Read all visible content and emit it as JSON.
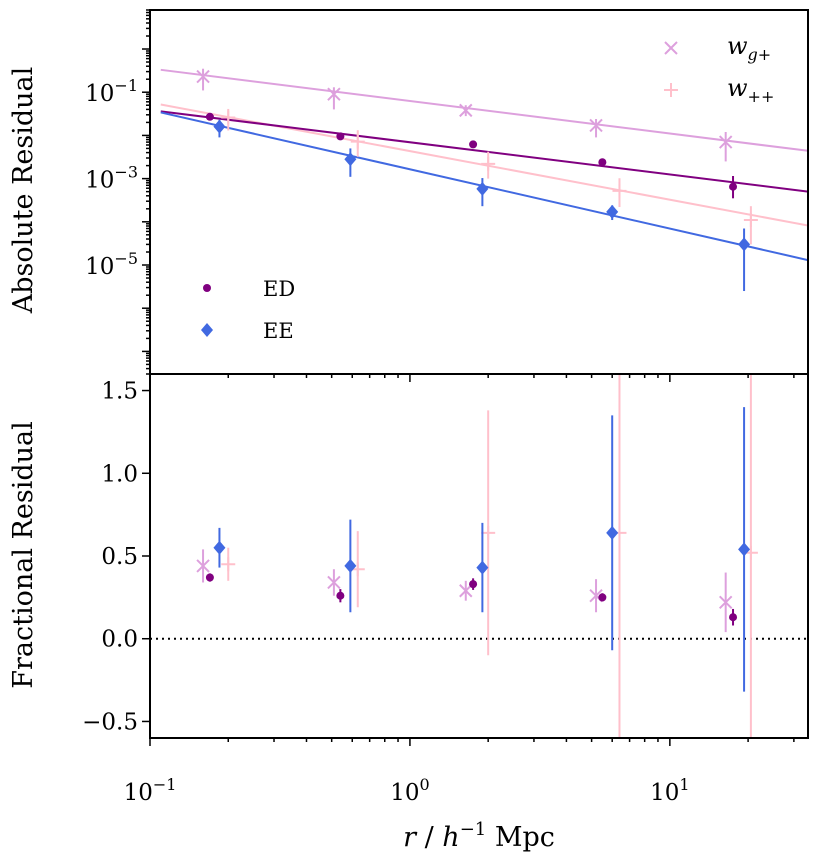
{
  "chart_data": [
    {
      "type": "scatter",
      "panel": "top",
      "title": "",
      "ylabel": "Absolute Residual",
      "xscale": "log",
      "yscale": "log",
      "xlim": [
        0.1,
        34
      ],
      "ylim": [
        3e-08,
        8
      ],
      "y_ticks": [
        {
          "value": 0.1,
          "label": "10^{-1}"
        },
        {
          "value": 0.001,
          "label": "10^{-3}"
        },
        {
          "value": 1e-05,
          "label": "10^{-5}"
        }
      ],
      "legend_left_position": "bottom-left",
      "legend_right_position": "top-right",
      "series": [
        {
          "name": "w_{g+}",
          "label_base": "w",
          "label_sub": "g+",
          "marker": "x",
          "color": "#DDA0DD",
          "legend": "right",
          "x": [
            0.16,
            0.51,
            1.64,
            5.2,
            16.4
          ],
          "y": [
            0.23,
            0.09,
            0.038,
            0.017,
            0.007
          ],
          "yerr_lo": [
            0.12,
            0.05,
            0.01,
            0.008,
            0.0045
          ],
          "yerr_hi": [
            0.12,
            0.04,
            0.012,
            0.007,
            0.005
          ],
          "fit": {
            "x0": 0.11,
            "y0": 0.33,
            "x1": 34,
            "y1": 0.0044
          }
        },
        {
          "name": "w_{++}",
          "label_base": "w",
          "label_sub": "++",
          "marker": "+",
          "color": "#FFC0CB",
          "legend": "right",
          "x": [
            0.2,
            0.63,
            2.0,
            6.4,
            20.5
          ],
          "y": [
            0.026,
            0.0072,
            0.0022,
            0.00052,
            0.00011
          ],
          "yerr_lo": [
            0.013,
            0.004,
            0.0012,
            0.0003,
            8e-05
          ],
          "yerr_hi": [
            0.015,
            0.006,
            0.002,
            0.0005,
            0.00012
          ],
          "fit": {
            "x0": 0.11,
            "y0": 0.052,
            "x1": 34,
            "y1": 8.2e-05
          }
        },
        {
          "name": "ED",
          "marker": "o",
          "color": "#800080",
          "legend": "left",
          "x": [
            0.17,
            0.54,
            1.75,
            5.5,
            17.5
          ],
          "y": [
            0.027,
            0.0095,
            0.0062,
            0.0024,
            0.00065
          ],
          "yerr_lo": [
            0.003,
            0.001,
            0.0008,
            0.0003,
            0.0003
          ],
          "yerr_hi": [
            0.003,
            0.001,
            0.0008,
            0.0003,
            0.0005
          ],
          "fit": {
            "x0": 0.11,
            "y0": 0.036,
            "x1": 34,
            "y1": 0.0005
          }
        },
        {
          "name": "EE",
          "marker": "D",
          "color": "#4169E1",
          "legend": "left",
          "x": [
            0.185,
            0.59,
            1.9,
            6.0,
            19.3
          ],
          "y": [
            0.016,
            0.0028,
            0.00058,
            0.00017,
            3e-05
          ],
          "yerr_lo": [
            0.007,
            0.0017,
            0.00035,
            6e-05,
            2.75e-05
          ],
          "yerr_hi": [
            0.007,
            0.0022,
            0.00045,
            7e-05,
            4e-05
          ],
          "fit": {
            "x0": 0.11,
            "y0": 0.034,
            "x1": 34,
            "y1": 1.3e-05
          }
        }
      ]
    },
    {
      "type": "scatter",
      "panel": "bottom",
      "title": "",
      "xlabel": "r / h^{-1} Mpc",
      "ylabel": "Fractional Residual",
      "xscale": "log",
      "yscale": "linear",
      "xlim": [
        0.1,
        34
      ],
      "ylim": [
        -0.6,
        1.6
      ],
      "y_ticks": [
        {
          "value": 1.5,
          "label": "1.5"
        },
        {
          "value": 1.0,
          "label": "1.0"
        },
        {
          "value": 0.5,
          "label": "0.5"
        },
        {
          "value": 0.0,
          "label": "0.0"
        },
        {
          "value": -0.5,
          "label": "−0.5"
        }
      ],
      "x_ticks": [
        {
          "value": 0.1,
          "label": "10^{-1}"
        },
        {
          "value": 1,
          "label": "10^{0}"
        },
        {
          "value": 10,
          "label": "10^{1}"
        }
      ],
      "reference_line": {
        "y": 0.0,
        "style": "dotted"
      },
      "series": [
        {
          "name": "w_{g+}",
          "marker": "x",
          "color": "#DDA0DD",
          "x": [
            0.16,
            0.51,
            1.64,
            5.2,
            16.4
          ],
          "y": [
            0.44,
            0.34,
            0.29,
            0.26,
            0.22
          ],
          "yerr_lo": [
            0.1,
            0.08,
            0.06,
            0.1,
            0.18
          ],
          "yerr_hi": [
            0.1,
            0.08,
            0.06,
            0.1,
            0.18
          ]
        },
        {
          "name": "w_{++}",
          "marker": "+",
          "color": "#FFC0CB",
          "x": [
            0.2,
            0.63,
            2.0,
            6.4,
            20.5
          ],
          "y": [
            0.45,
            0.42,
            0.64,
            0.64,
            0.52
          ],
          "yerr_lo": [
            0.1,
            0.23,
            0.74,
            1.3,
            1.15
          ],
          "yerr_hi": [
            0.1,
            0.23,
            0.74,
            1.3,
            1.15
          ]
        },
        {
          "name": "ED",
          "marker": "o",
          "color": "#800080",
          "x": [
            0.17,
            0.54,
            1.75,
            5.5,
            17.5
          ],
          "y": [
            0.37,
            0.26,
            0.33,
            0.25,
            0.13
          ],
          "yerr_lo": [
            0.025,
            0.04,
            0.035,
            0.025,
            0.05
          ],
          "yerr_hi": [
            0.025,
            0.04,
            0.035,
            0.025,
            0.05
          ]
        },
        {
          "name": "EE",
          "marker": "D",
          "color": "#4169E1",
          "x": [
            0.185,
            0.59,
            1.9,
            6.0,
            19.3
          ],
          "y": [
            0.55,
            0.44,
            0.43,
            0.64,
            0.54
          ],
          "yerr_lo": [
            0.12,
            0.28,
            0.27,
            0.71,
            0.86
          ],
          "yerr_hi": [
            0.12,
            0.28,
            0.27,
            0.71,
            0.86
          ]
        }
      ]
    }
  ]
}
